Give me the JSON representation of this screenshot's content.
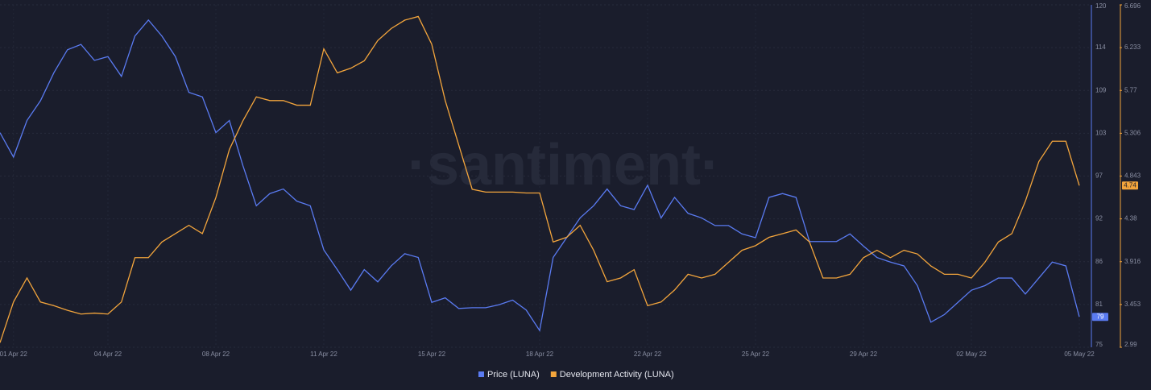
{
  "chart_data": {
    "type": "line",
    "watermark": "·santiment·",
    "categories": [
      null,
      "01 Apr 22",
      null,
      null,
      null,
      null,
      null,
      null,
      "04 Apr 22",
      null,
      null,
      null,
      null,
      null,
      null,
      null,
      "08 Apr 22",
      null,
      null,
      null,
      null,
      null,
      null,
      null,
      "11 Apr 22",
      null,
      null,
      null,
      null,
      null,
      null,
      null,
      "15 Apr 22",
      null,
      null,
      null,
      null,
      null,
      null,
      null,
      "18 Apr 22",
      null,
      null,
      null,
      null,
      null,
      null,
      null,
      "22 Apr 22",
      null,
      null,
      null,
      null,
      null,
      null,
      null,
      "25 Apr 22",
      null,
      null,
      null,
      null,
      null,
      null,
      null,
      "29 Apr 22",
      null,
      null,
      null,
      null,
      null,
      null,
      null,
      "02 May 22",
      null,
      null,
      null,
      null,
      null,
      null,
      null,
      "05 May 22"
    ],
    "series": [
      {
        "name": "Price (LUNA)",
        "color": "#5a7bf2",
        "axis": "y",
        "last_label": "79",
        "values": [
          103.2,
          100,
          104.8,
          107.4,
          111.1,
          114.1,
          114.8,
          112.7,
          113.2,
          110.6,
          115.9,
          118,
          115.9,
          113.2,
          108.5,
          107.9,
          103.2,
          104.8,
          98.9,
          93.6,
          95.2,
          95.8,
          94.2,
          93.6,
          87.8,
          85.2,
          82.5,
          85.2,
          83.6,
          85.7,
          87.3,
          86.8,
          80.9,
          81.5,
          80.1,
          80.2,
          80.2,
          80.6,
          81.2,
          79.9,
          77.2,
          86.8,
          89.4,
          92.0,
          93.6,
          95.8,
          93.6,
          93.1,
          96.3,
          92.0,
          94.7,
          92.6,
          92.0,
          91.0,
          91.0,
          89.9,
          89.4,
          94.7,
          95.2,
          94.7,
          88.9,
          88.9,
          88.9,
          89.9,
          88.3,
          86.8,
          86.2,
          85.7,
          83.1,
          78.3,
          79.3,
          80.9,
          82.5,
          83.1,
          84.1,
          84.1,
          82.0,
          84.1,
          86.2,
          85.7,
          79
        ]
      },
      {
        "name": "Development Activity (LUNA)",
        "color": "#f3a53c",
        "axis": "y2",
        "last_label": "4.74",
        "values": [
          3.04,
          3.48,
          3.74,
          3.48,
          3.44,
          3.39,
          3.35,
          3.36,
          3.35,
          3.48,
          3.96,
          3.96,
          4.13,
          4.22,
          4.31,
          4.22,
          4.61,
          5.13,
          5.44,
          5.7,
          5.66,
          5.66,
          5.61,
          5.61,
          6.22,
          5.96,
          6.01,
          6.09,
          6.31,
          6.44,
          6.53,
          6.57,
          6.27,
          5.66,
          5.18,
          4.7,
          4.67,
          4.67,
          4.67,
          4.66,
          4.66,
          4.13,
          4.18,
          4.31,
          4.04,
          3.7,
          3.74,
          3.83,
          3.44,
          3.48,
          3.61,
          3.78,
          3.74,
          3.78,
          3.91,
          4.04,
          4.09,
          4.18,
          4.22,
          4.26,
          4.13,
          3.74,
          3.74,
          3.78,
          3.96,
          4.04,
          3.96,
          4.04,
          4.0,
          3.87,
          3.78,
          3.78,
          3.74,
          3.91,
          4.13,
          4.22,
          4.57,
          5.0,
          5.22,
          5.22,
          4.74
        ]
      }
    ],
    "ylim": [
      75,
      120
    ],
    "yticks": [
      75,
      {
        "value": 80.625,
        "label": "81"
      },
      {
        "value": 86.25,
        "label": "86"
      },
      {
        "value": 91.875,
        "label": "92"
      },
      {
        "value": 97.5,
        "label": "97"
      },
      {
        "value": 103.125,
        "label": "103"
      },
      {
        "value": 108.75,
        "label": "109"
      },
      {
        "value": 114.375,
        "label": "114"
      },
      120
    ],
    "y2lim": [
      2.99,
      6.696
    ],
    "y2ticks": [
      2.99,
      {
        "value": 3.45325,
        "label": "3.453"
      },
      {
        "value": 3.9165,
        "label": "3.916"
      },
      {
        "value": 4.37975,
        "label": "4.38"
      },
      4.843,
      {
        "value": 5.30625,
        "label": "5.306"
      },
      {
        "value": 5.7695,
        "label": "5.77"
      },
      {
        "value": 6.23275,
        "label": "6.233"
      },
      6.696
    ],
    "grid": true
  }
}
